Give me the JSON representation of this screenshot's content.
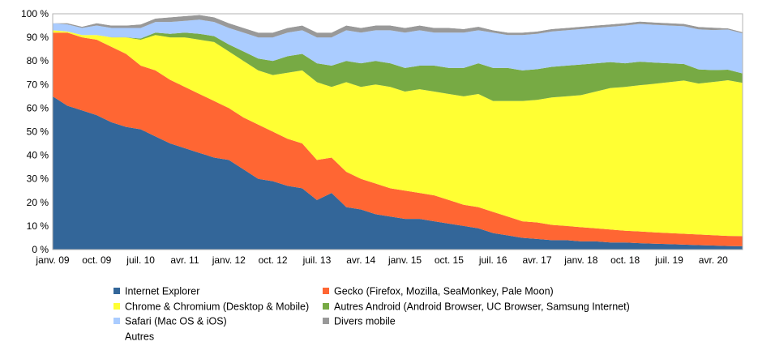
{
  "chart_data": {
    "type": "area",
    "stacked": true,
    "title": "",
    "xlabel": "",
    "ylabel": "",
    "ylim": [
      0,
      100
    ],
    "y_ticks": [
      "0 %",
      "10 %",
      "20 %",
      "30 %",
      "40 %",
      "50 %",
      "60 %",
      "70 %",
      "80 %",
      "90 %",
      "100 %"
    ],
    "x_tick_labels": [
      "janv. 09",
      "oct. 09",
      "juil. 10",
      "avr. 11",
      "janv. 12",
      "oct. 12",
      "juil. 13",
      "avr. 14",
      "janv. 15",
      "oct. 15",
      "juil. 16",
      "avr. 17",
      "janv. 18",
      "oct. 18",
      "juil. 19",
      "avr. 20"
    ],
    "grid": "horizontal",
    "legend_position": "bottom",
    "x": [
      "janv. 09",
      "avr. 09",
      "juil. 09",
      "oct. 09",
      "janv. 10",
      "avr. 10",
      "juil. 10",
      "oct. 10",
      "janv. 11",
      "avr. 11",
      "juil. 11",
      "oct. 11",
      "janv. 12",
      "avr. 12",
      "juil. 12",
      "oct. 12",
      "janv. 13",
      "avr. 13",
      "juil. 13",
      "oct. 13",
      "janv. 14",
      "avr. 14",
      "juil. 14",
      "oct. 14",
      "janv. 15",
      "avr. 15",
      "juil. 15",
      "oct. 15",
      "janv. 16",
      "avr. 16",
      "juil. 16",
      "oct. 16",
      "janv. 17",
      "avr. 17",
      "juil. 17",
      "oct. 17",
      "janv. 18",
      "avr. 18",
      "juil. 18",
      "oct. 18",
      "janv. 19",
      "avr. 19",
      "juil. 19",
      "oct. 19",
      "janv. 20",
      "avr. 20",
      "juil. 20",
      "sept. 20"
    ],
    "series": [
      {
        "name": "Internet Explorer",
        "color": "#336699",
        "values": [
          65,
          61,
          59,
          57,
          54,
          52,
          51,
          48,
          45,
          43,
          41,
          39,
          38,
          34,
          30,
          29,
          27,
          26,
          21,
          24,
          18,
          17,
          15,
          14,
          13,
          13,
          12,
          11,
          10,
          9,
          7,
          6,
          5,
          4.5,
          4,
          4,
          3.5,
          3.5,
          3,
          3,
          2.7,
          2.5,
          2.3,
          2.1,
          1.9,
          1.7,
          1.5,
          1.4
        ]
      },
      {
        "name": "Gecko (Firefox, Mozilla, SeaMonkey, Pale Moon)",
        "color": "#FF6633",
        "values": [
          27,
          31,
          31,
          32,
          32,
          31,
          27,
          28,
          27,
          26,
          25,
          24,
          22,
          22,
          23,
          21,
          20,
          19,
          17,
          15,
          15,
          13,
          13,
          12,
          12,
          11,
          11,
          10,
          9,
          9,
          9,
          8,
          7,
          7,
          6.5,
          6,
          6,
          5.5,
          5.5,
          5,
          5,
          4.8,
          4.7,
          4.6,
          4.5,
          4.4,
          4.3,
          4.3
        ]
      },
      {
        "name": "Chrome & Chromium (Desktop & Mobile)",
        "color": "#FFFF33",
        "values": [
          1,
          0.5,
          1,
          2,
          4,
          7,
          11,
          15,
          18,
          21,
          23,
          25,
          24,
          24,
          23,
          24,
          28,
          31,
          33,
          30,
          38,
          39,
          42,
          43,
          42,
          44,
          44,
          45,
          46,
          48,
          47,
          49,
          51,
          52,
          54,
          55,
          56,
          58,
          60,
          61,
          62,
          63,
          64,
          65,
          64,
          65,
          66,
          65
        ]
      },
      {
        "name": "Autres Android (Android Browser, UC Browser, Samsung Internet)",
        "color": "#77AA44",
        "values": [
          0,
          0,
          0,
          0,
          0,
          0,
          0.5,
          1,
          1.5,
          2,
          2.5,
          2.5,
          3,
          4,
          5,
          6,
          7,
          7,
          8,
          9,
          9,
          10,
          10,
          10,
          10,
          10,
          11,
          11,
          12,
          13,
          14,
          14,
          13,
          13,
          13,
          13,
          13,
          12,
          11,
          10,
          10,
          9,
          8,
          7,
          6,
          5,
          4.5,
          4
        ]
      },
      {
        "name": "Safari (Mac OS & iOS)",
        "color": "#AACCFF",
        "values": [
          3,
          3,
          3,
          4,
          4,
          4,
          4.5,
          4.5,
          5,
          5,
          6,
          6,
          7,
          8,
          9,
          10,
          10,
          10,
          11,
          12,
          13,
          13,
          13,
          14,
          15,
          15,
          14,
          15,
          15,
          14,
          15,
          14,
          15,
          15,
          15,
          15,
          15,
          15,
          15,
          16,
          16,
          16,
          16,
          16,
          17,
          17,
          17,
          17
        ]
      },
      {
        "name": "Divers mobile",
        "color": "#999999",
        "values": [
          0,
          0.5,
          0.5,
          1,
          1,
          1,
          1.5,
          1.5,
          2,
          2,
          2,
          2,
          2,
          2,
          2,
          2,
          2,
          2,
          2,
          2,
          2,
          2,
          2,
          2,
          2,
          2,
          2,
          2,
          1.5,
          1.5,
          1,
          1,
          1,
          1,
          1,
          1,
          1,
          1,
          1,
          1,
          1,
          1,
          1,
          1,
          1,
          1,
          0.5,
          0.5
        ]
      },
      {
        "name": "Autres",
        "color": "#FFFFFF",
        "values": [
          4,
          4,
          5.5,
          4,
          5,
          5,
          4.5,
          2,
          1.5,
          1,
          0.5,
          1.5,
          4,
          6,
          8,
          8,
          6,
          5,
          8,
          8,
          5,
          6,
          5,
          5,
          6,
          5,
          6,
          6,
          6.5,
          5.5,
          7,
          8,
          8,
          7.5,
          6.5,
          6,
          5.5,
          5,
          4.5,
          4,
          3.3,
          3.7,
          4,
          4.3,
          5.6,
          5.9,
          6.2,
          7.8
        ]
      }
    ]
  }
}
